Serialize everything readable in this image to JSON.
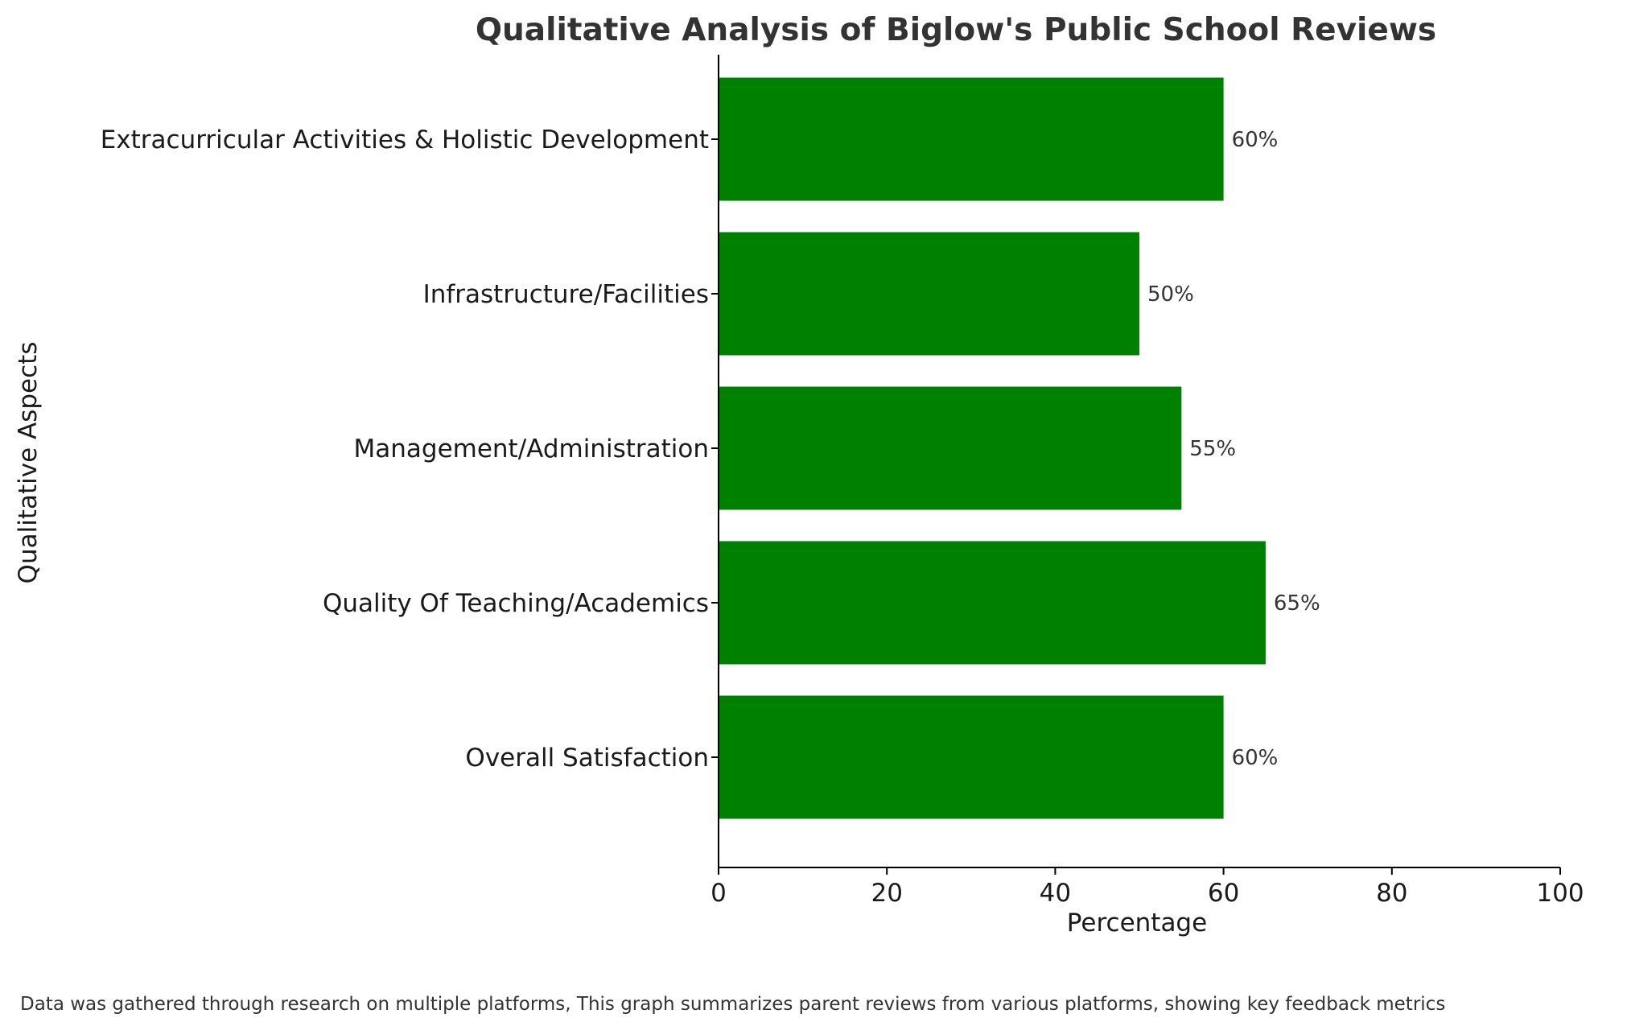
{
  "chart_data": {
    "type": "bar",
    "orientation": "horizontal",
    "title": "Qualitative Analysis of Biglow's Public School Reviews",
    "xlabel": "Percentage",
    "ylabel": "Qualitative Aspects",
    "xlim": [
      0,
      100
    ],
    "xticks": [
      0,
      20,
      40,
      60,
      80,
      100
    ],
    "categories": [
      "Overall Satisfaction",
      "Quality Of Teaching/Academics",
      "Management/Administration",
      "Infrastructure/Facilities",
      "Extracurricular Activities & Holistic Development"
    ],
    "values": [
      60,
      65,
      55,
      50,
      60
    ],
    "value_labels": [
      "60%",
      "65%",
      "55%",
      "50%",
      "60%"
    ],
    "bar_color": "#008000",
    "grid": false,
    "footnote": "Data was gathered through research on multiple platforms, This graph summarizes parent reviews from various platforms, showing key feedback metrics"
  }
}
